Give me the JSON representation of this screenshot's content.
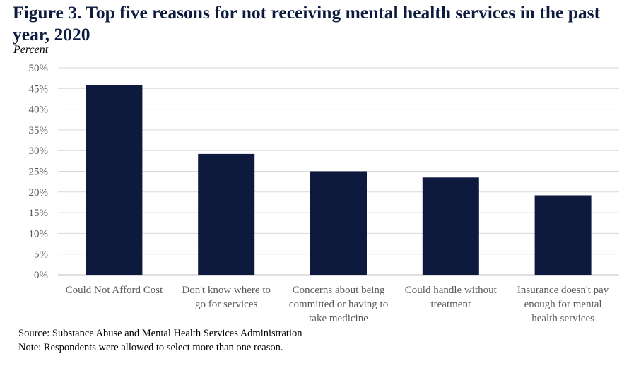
{
  "chart_data": {
    "type": "bar",
    "title": "Figure 3. Top five reasons for not receiving mental health services in the past year, 2020",
    "ylabel": "Percent",
    "xlabel": "",
    "categories": [
      [
        "Could Not Afford Cost"
      ],
      [
        "Don't know where to",
        "go for services"
      ],
      [
        "Concerns about being",
        "committed or having to",
        "take medicine"
      ],
      [
        "Could handle without",
        "treatment"
      ],
      [
        "Insurance doesn't pay",
        "enough for mental",
        "health services"
      ]
    ],
    "values": [
      45.8,
      29.2,
      25.0,
      23.5,
      19.2
    ],
    "ylim": [
      0,
      50
    ],
    "yticks": [
      "0%",
      "5%",
      "10%",
      "15%",
      "20%",
      "25%",
      "30%",
      "35%",
      "40%",
      "45%",
      "50%"
    ],
    "grid": true,
    "bar_color": "#0d1a3d",
    "grid_color": "#d9d9d9"
  },
  "source": "Source: Substance Abuse and Mental Health Services Administration",
  "note": "Note: Respondents were allowed to select more than one reason."
}
